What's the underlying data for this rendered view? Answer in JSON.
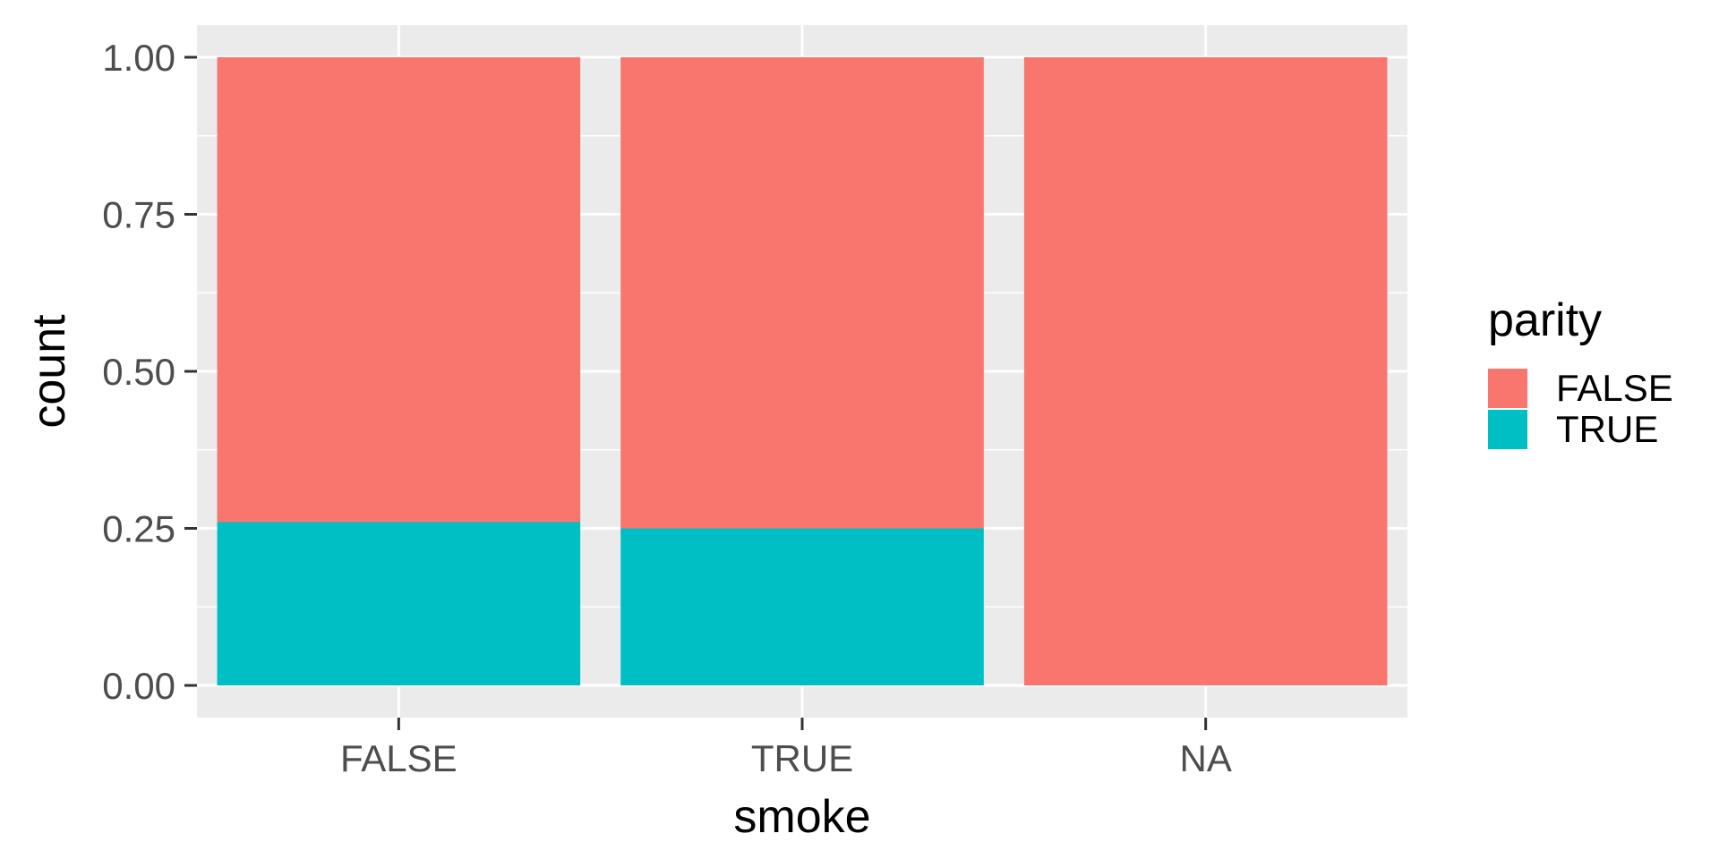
{
  "chart_data": {
    "type": "bar",
    "stacked": true,
    "position": "fill",
    "categories": [
      "FALSE",
      "TRUE",
      "NA"
    ],
    "series": [
      {
        "name": "FALSE",
        "color": "#F8766D",
        "values": [
          0.74,
          0.75,
          1.0
        ]
      },
      {
        "name": "TRUE",
        "color": "#00BFC4",
        "values": [
          0.26,
          0.25,
          0.0
        ]
      }
    ],
    "xlabel": "smoke",
    "ylabel": "count",
    "ylim": [
      0,
      1
    ],
    "yticks": [
      "0.00",
      "0.25",
      "0.50",
      "0.75",
      "1.00"
    ],
    "ytick_values": [
      0,
      0.25,
      0.5,
      0.75,
      1.0
    ],
    "legend": {
      "title": "parity",
      "position": "right"
    },
    "grid": true,
    "panel_background": "#EBEBEB"
  }
}
